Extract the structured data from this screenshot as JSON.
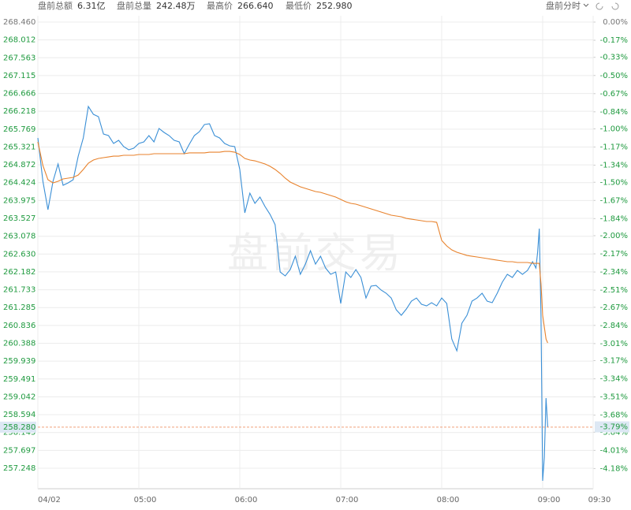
{
  "header": [
    {
      "label": "盘前总额",
      "value": "6.31亿"
    },
    {
      "label": "盘前总量",
      "value": "242.48万"
    },
    {
      "label": "最高价",
      "value": "266.640"
    },
    {
      "label": "最低价",
      "value": "252.980"
    }
  ],
  "mode_label": "盘前分时",
  "chart_data": {
    "type": "line",
    "watermark": "盘前交易",
    "x": [
      "04:00",
      "04:03",
      "04:06",
      "04:09",
      "04:12",
      "04:15",
      "04:18",
      "04:21",
      "04:24",
      "04:27",
      "04:30",
      "04:33",
      "04:36",
      "04:39",
      "04:42",
      "04:45",
      "04:48",
      "04:51",
      "04:54",
      "04:57",
      "05:00",
      "05:03",
      "05:06",
      "05:09",
      "05:12",
      "05:15",
      "05:18",
      "05:21",
      "05:24",
      "05:27",
      "05:30",
      "05:33",
      "05:36",
      "05:39",
      "05:42",
      "05:45",
      "05:48",
      "05:51",
      "05:54",
      "05:57",
      "06:00",
      "06:03",
      "06:06",
      "06:09",
      "06:12",
      "06:15",
      "06:18",
      "06:21",
      "06:24",
      "06:27",
      "06:30",
      "06:33",
      "06:36",
      "06:39",
      "06:42",
      "06:45",
      "06:48",
      "06:51",
      "06:54",
      "06:57",
      "07:00",
      "07:03",
      "07:06",
      "07:09",
      "07:12",
      "07:15",
      "07:18",
      "07:21",
      "07:24",
      "07:27",
      "07:30",
      "07:33",
      "07:36",
      "07:39",
      "07:42",
      "07:45",
      "07:48",
      "07:51",
      "07:54",
      "07:57",
      "08:00",
      "08:03",
      "08:06",
      "08:09",
      "08:12",
      "08:15",
      "08:18",
      "08:21",
      "08:24",
      "08:27",
      "08:30",
      "08:33",
      "08:36",
      "08:39",
      "08:42",
      "08:45",
      "08:48",
      "08:51",
      "08:54",
      "08:56",
      "08:57",
      "08:58",
      "08:59",
      "09:00",
      "09:01",
      "09:02",
      "09:03"
    ],
    "series": [
      {
        "color": "#3a8fd6",
        "values": [
          265.548,
          264.458,
          263.745,
          264.458,
          264.894,
          264.359,
          264.419,
          264.498,
          265.092,
          265.548,
          266.34,
          266.142,
          266.083,
          265.647,
          265.607,
          265.409,
          265.488,
          265.33,
          265.251,
          265.29,
          265.409,
          265.449,
          265.607,
          265.449,
          265.786,
          265.687,
          265.607,
          265.488,
          265.449,
          265.152,
          265.389,
          265.607,
          265.706,
          265.885,
          265.905,
          265.607,
          265.548,
          265.409,
          265.35,
          265.33,
          264.756,
          263.666,
          264.161,
          263.904,
          264.062,
          263.824,
          263.626,
          263.369,
          262.18,
          262.081,
          262.24,
          262.576,
          262.121,
          262.378,
          262.715,
          262.378,
          262.576,
          262.279,
          262.121,
          262.18,
          261.388,
          262.18,
          262.042,
          262.24,
          262.042,
          261.526,
          261.824,
          261.843,
          261.725,
          261.645,
          261.526,
          261.229,
          261.091,
          261.249,
          261.447,
          261.526,
          261.368,
          261.328,
          261.408,
          261.328,
          261.526,
          261.388,
          260.496,
          260.199,
          260.893,
          261.091,
          261.447,
          261.526,
          261.645,
          261.447,
          261.408,
          261.645,
          261.923,
          262.121,
          262.042,
          262.22,
          262.121,
          262.22,
          262.438,
          262.279,
          262.675,
          263.27,
          261.091,
          256.931,
          257.525,
          259.011,
          258.28
        ]
      },
      {
        "color": "#e8822c",
        "values": [
          265.449,
          264.855,
          264.498,
          264.419,
          264.458,
          264.518,
          264.538,
          264.557,
          264.617,
          264.756,
          264.914,
          264.993,
          265.033,
          265.053,
          265.072,
          265.092,
          265.092,
          265.112,
          265.112,
          265.112,
          265.132,
          265.132,
          265.132,
          265.152,
          265.152,
          265.152,
          265.152,
          265.152,
          265.152,
          265.152,
          265.172,
          265.172,
          265.172,
          265.172,
          265.191,
          265.191,
          265.191,
          265.211,
          265.211,
          265.191,
          265.132,
          265.033,
          264.993,
          264.973,
          264.934,
          264.894,
          264.835,
          264.756,
          264.656,
          264.538,
          264.439,
          264.379,
          264.32,
          264.28,
          264.24,
          264.201,
          264.181,
          264.141,
          264.102,
          264.062,
          264.003,
          263.943,
          263.904,
          263.884,
          263.844,
          263.805,
          263.765,
          263.725,
          263.686,
          263.646,
          263.607,
          263.587,
          263.567,
          263.527,
          263.507,
          263.488,
          263.468,
          263.448,
          263.448,
          263.428,
          262.973,
          262.834,
          262.735,
          262.675,
          262.636,
          262.596,
          262.576,
          262.557,
          262.537,
          262.517,
          262.497,
          262.477,
          262.458,
          262.438,
          262.438,
          262.418,
          262.418,
          262.418,
          262.398,
          262.398,
          262.398,
          262.398,
          261.883,
          261.091,
          260.794,
          260.496,
          260.397
        ]
      }
    ],
    "xlim": [
      "04:00",
      "09:30"
    ],
    "xticks": [
      {
        "value": "04:00",
        "label": "04/02"
      },
      "05:00",
      "06:00",
      "07:00",
      "08:00",
      "09:00",
      "09:30"
    ],
    "ylim": [
      256.733,
      268.46
    ],
    "yticks": [
      {
        "value": 268.46,
        "label": "268.460"
      },
      268.012,
      267.563,
      267.115,
      266.666,
      266.218,
      265.769,
      265.321,
      264.872,
      264.424,
      263.975,
      263.527,
      263.078,
      {
        "value": 262.63,
        "label": "262.630"
      },
      262.182,
      261.733,
      261.285,
      260.836,
      260.388,
      259.939,
      259.491,
      259.042,
      258.594,
      258.145,
      257.697,
      257.248
    ],
    "y2lim": [
      -4.369,
      0
    ],
    "y2ticks": [
      {
        "value": 0,
        "label": "0.00%"
      },
      {
        "value": -0.17,
        "label": "-0.17%"
      },
      {
        "value": -0.33,
        "label": "-0.33%"
      },
      {
        "value": -0.5,
        "label": "-0.50%"
      },
      {
        "value": -0.67,
        "label": "-0.67%"
      },
      {
        "value": -0.84,
        "label": "-0.84%"
      },
      {
        "value": -1.0,
        "label": "-1.00%"
      },
      {
        "value": -1.17,
        "label": "-1.17%"
      },
      {
        "value": -1.34,
        "label": "-1.34%"
      },
      {
        "value": -1.5,
        "label": "-1.50%"
      },
      {
        "value": -1.67,
        "label": "-1.67%"
      },
      {
        "value": -1.84,
        "label": "-1.84%"
      },
      {
        "value": -2.0,
        "label": "-2.00%"
      },
      {
        "value": -2.17,
        "label": "-2.17%"
      },
      {
        "value": -2.34,
        "label": "-2.34%"
      },
      {
        "value": -2.51,
        "label": "-2.51%"
      },
      {
        "value": -2.67,
        "label": "-2.67%"
      },
      {
        "value": -2.84,
        "label": "-2.84%"
      },
      {
        "value": -3.01,
        "label": "-3.01%"
      },
      {
        "value": -3.17,
        "label": "-3.17%"
      },
      {
        "value": -3.34,
        "label": "-3.34%"
      },
      {
        "value": -3.51,
        "label": "-3.51%"
      },
      {
        "value": -3.68,
        "label": "-3.68%"
      },
      {
        "value": -3.84,
        "label": "-3.84%"
      },
      {
        "value": -4.01,
        "label": "-4.01%"
      },
      {
        "value": -4.18,
        "label": "-4.18%"
      }
    ],
    "last_price": {
      "value": 258.28,
      "label": "258.280"
    },
    "last_change": {
      "value": -3.79,
      "label": "-3.79%"
    },
    "grid": true,
    "tick_color": "#1f9a3f",
    "marker_color": "#f0a07a"
  }
}
